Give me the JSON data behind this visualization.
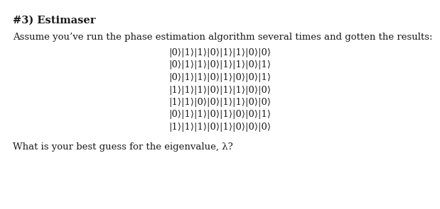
{
  "title_text": "#3) Estimaser",
  "title_prefix": "#3) ",
  "title_suffix": "Estimaser",
  "intro_text": "Assume you’ve run the phase estimation algorithm several times and gotten the results:",
  "rows": [
    "|0⟩|1⟩|1⟩|0⟩|1⟩|1⟩|0⟩|0⟩",
    "|0⟩|1⟩|1⟩|0⟩|1⟩|1⟩|0⟩|1⟩",
    "|0⟩|1⟩|1⟩|0⟩|1⟩|0⟩|0⟩|1⟩",
    "|1⟩|1⟩|1⟩|0⟩|1⟩|1⟩|0⟩|0⟩",
    "|1⟩|1⟩|0⟩|0⟩|1⟩|1⟩|0⟩|0⟩",
    "|0⟩|1⟩|1⟩|0⟩|1⟩|0⟩|0⟩|1⟩",
    "|1⟩|1⟩|1⟩|0⟩|1⟩|0⟩|0⟩|0⟩"
  ],
  "footer_text": "What is your best guess for the eigenvalue, λ?",
  "bg_color": "#ffffff",
  "text_color": "#1a1a1a",
  "title_fontsize": 10.5,
  "body_fontsize": 9.5,
  "row_fontsize": 9.5,
  "footer_fontsize": 9.5,
  "fig_width": 6.19,
  "fig_height": 2.95,
  "dpi": 100
}
